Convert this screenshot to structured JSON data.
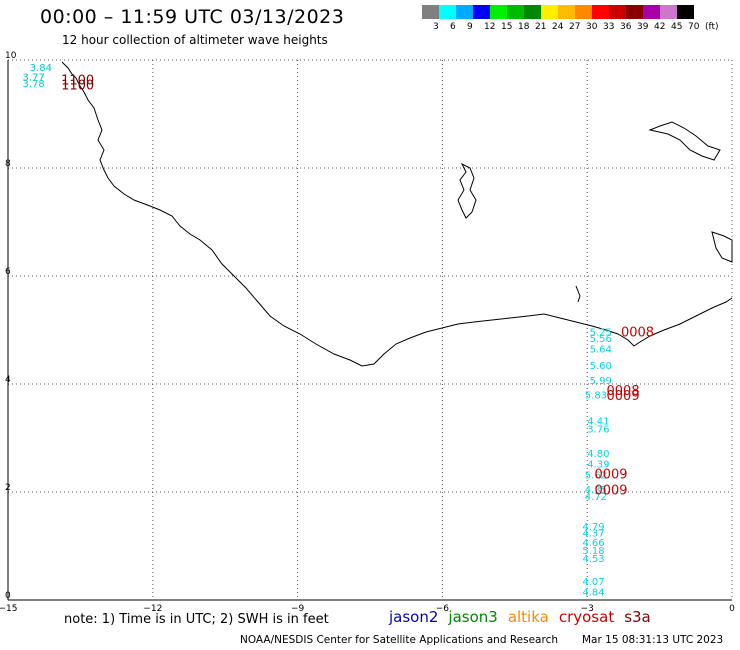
{
  "title": "00:00 – 11:59 UTC 03/13/2023",
  "subtitle": "12 hour collection of altimeter wave heights",
  "colorbar": {
    "colors": [
      "#808080",
      "#00ffff",
      "#00aaff",
      "#0000ff",
      "#00ee00",
      "#00bb00",
      "#008800",
      "#ffee00",
      "#ffbb00",
      "#ff8800",
      "#ff0000",
      "#cc0000",
      "#880000",
      "#aa00aa",
      "#cc77cc",
      "#000000"
    ],
    "labels": [
      "3",
      "6",
      "9",
      "12",
      "15",
      "18",
      "21",
      "24",
      "27",
      "30",
      "33",
      "36",
      "39",
      "42",
      "45",
      "70",
      "(ft)"
    ]
  },
  "axes": {
    "x_ticks": [
      "−15",
      "−12",
      "−9",
      "−6",
      "−3",
      "0"
    ],
    "y_ticks": [
      "10",
      "8",
      "6",
      "4",
      "2",
      "0"
    ]
  },
  "note": "note: 1) Time is in UTC; 2) SWH is in feet",
  "legend": [
    {
      "label": "jason2",
      "color": "#0000cc"
    },
    {
      "label": "jason3",
      "color": "#008800"
    },
    {
      "label": "altika",
      "color": "#ff8800"
    },
    {
      "label": "cryosat",
      "color": "#cc0000"
    },
    {
      "label": "s3a",
      "color": "#880000"
    }
  ],
  "footer": {
    "credit": "NOAA/NESDIS Center for Satellite Applications and Research",
    "timestamp": "Mar 15 08:31:13 UTC 2023"
  },
  "observations": {
    "upper_left_swh": [
      {
        "text": "3.84",
        "lon": -14.55,
        "lat": 9.8
      },
      {
        "text": "3.77",
        "lon": -14.7,
        "lat": 9.62
      },
      {
        "text": "3.78",
        "lon": -14.7,
        "lat": 9.5
      }
    ],
    "upper_left_time": [
      {
        "text": "1100",
        "lon": -13.9,
        "lat": 9.55
      },
      {
        "text": "1100",
        "lon": -13.9,
        "lat": 9.45
      }
    ],
    "track_swh": [
      {
        "text": "5.25",
        "lon": -2.95,
        "lat": 4.9
      },
      {
        "text": "5.56",
        "lon": -2.95,
        "lat": 4.78
      },
      {
        "text": "5.64",
        "lon": -2.95,
        "lat": 4.58
      },
      {
        "text": "5.60",
        "lon": -2.95,
        "lat": 4.28
      },
      {
        "text": "5.99",
        "lon": -2.95,
        "lat": 4.0
      },
      {
        "text": "5.83",
        "lon": -3.05,
        "lat": 3.73
      },
      {
        "text": "4.41",
        "lon": -3.0,
        "lat": 3.25
      },
      {
        "text": "3.76",
        "lon": -3.0,
        "lat": 3.1
      },
      {
        "text": "4.80",
        "lon": -3.0,
        "lat": 2.65
      },
      {
        "text": "4.39",
        "lon": -3.0,
        "lat": 2.45
      },
      {
        "text": "5.62",
        "lon": -3.05,
        "lat": 2.25
      },
      {
        "text": "4.35",
        "lon": -3.05,
        "lat": 1.98
      },
      {
        "text": "4.72",
        "lon": -3.05,
        "lat": 1.85
      },
      {
        "text": "4.79",
        "lon": -3.1,
        "lat": 1.3
      },
      {
        "text": "4.37",
        "lon": -3.1,
        "lat": 1.18
      },
      {
        "text": "4.66",
        "lon": -3.1,
        "lat": 1.0
      },
      {
        "text": "5.18",
        "lon": -3.1,
        "lat": 0.85
      },
      {
        "text": "4.53",
        "lon": -3.1,
        "lat": 0.7
      },
      {
        "text": "4.07",
        "lon": -3.1,
        "lat": 0.28
      },
      {
        "text": "4.84",
        "lon": -3.1,
        "lat": 0.08
      }
    ],
    "track_time": [
      {
        "text": "0008",
        "lon": -2.3,
        "lat": 4.88
      },
      {
        "text": "0008",
        "lon": -2.6,
        "lat": 3.8
      },
      {
        "text": "0009",
        "lon": -2.6,
        "lat": 3.7
      },
      {
        "text": "0009",
        "lon": -2.85,
        "lat": 2.25
      },
      {
        "text": "0009",
        "lon": -2.85,
        "lat": 1.95
      }
    ]
  }
}
